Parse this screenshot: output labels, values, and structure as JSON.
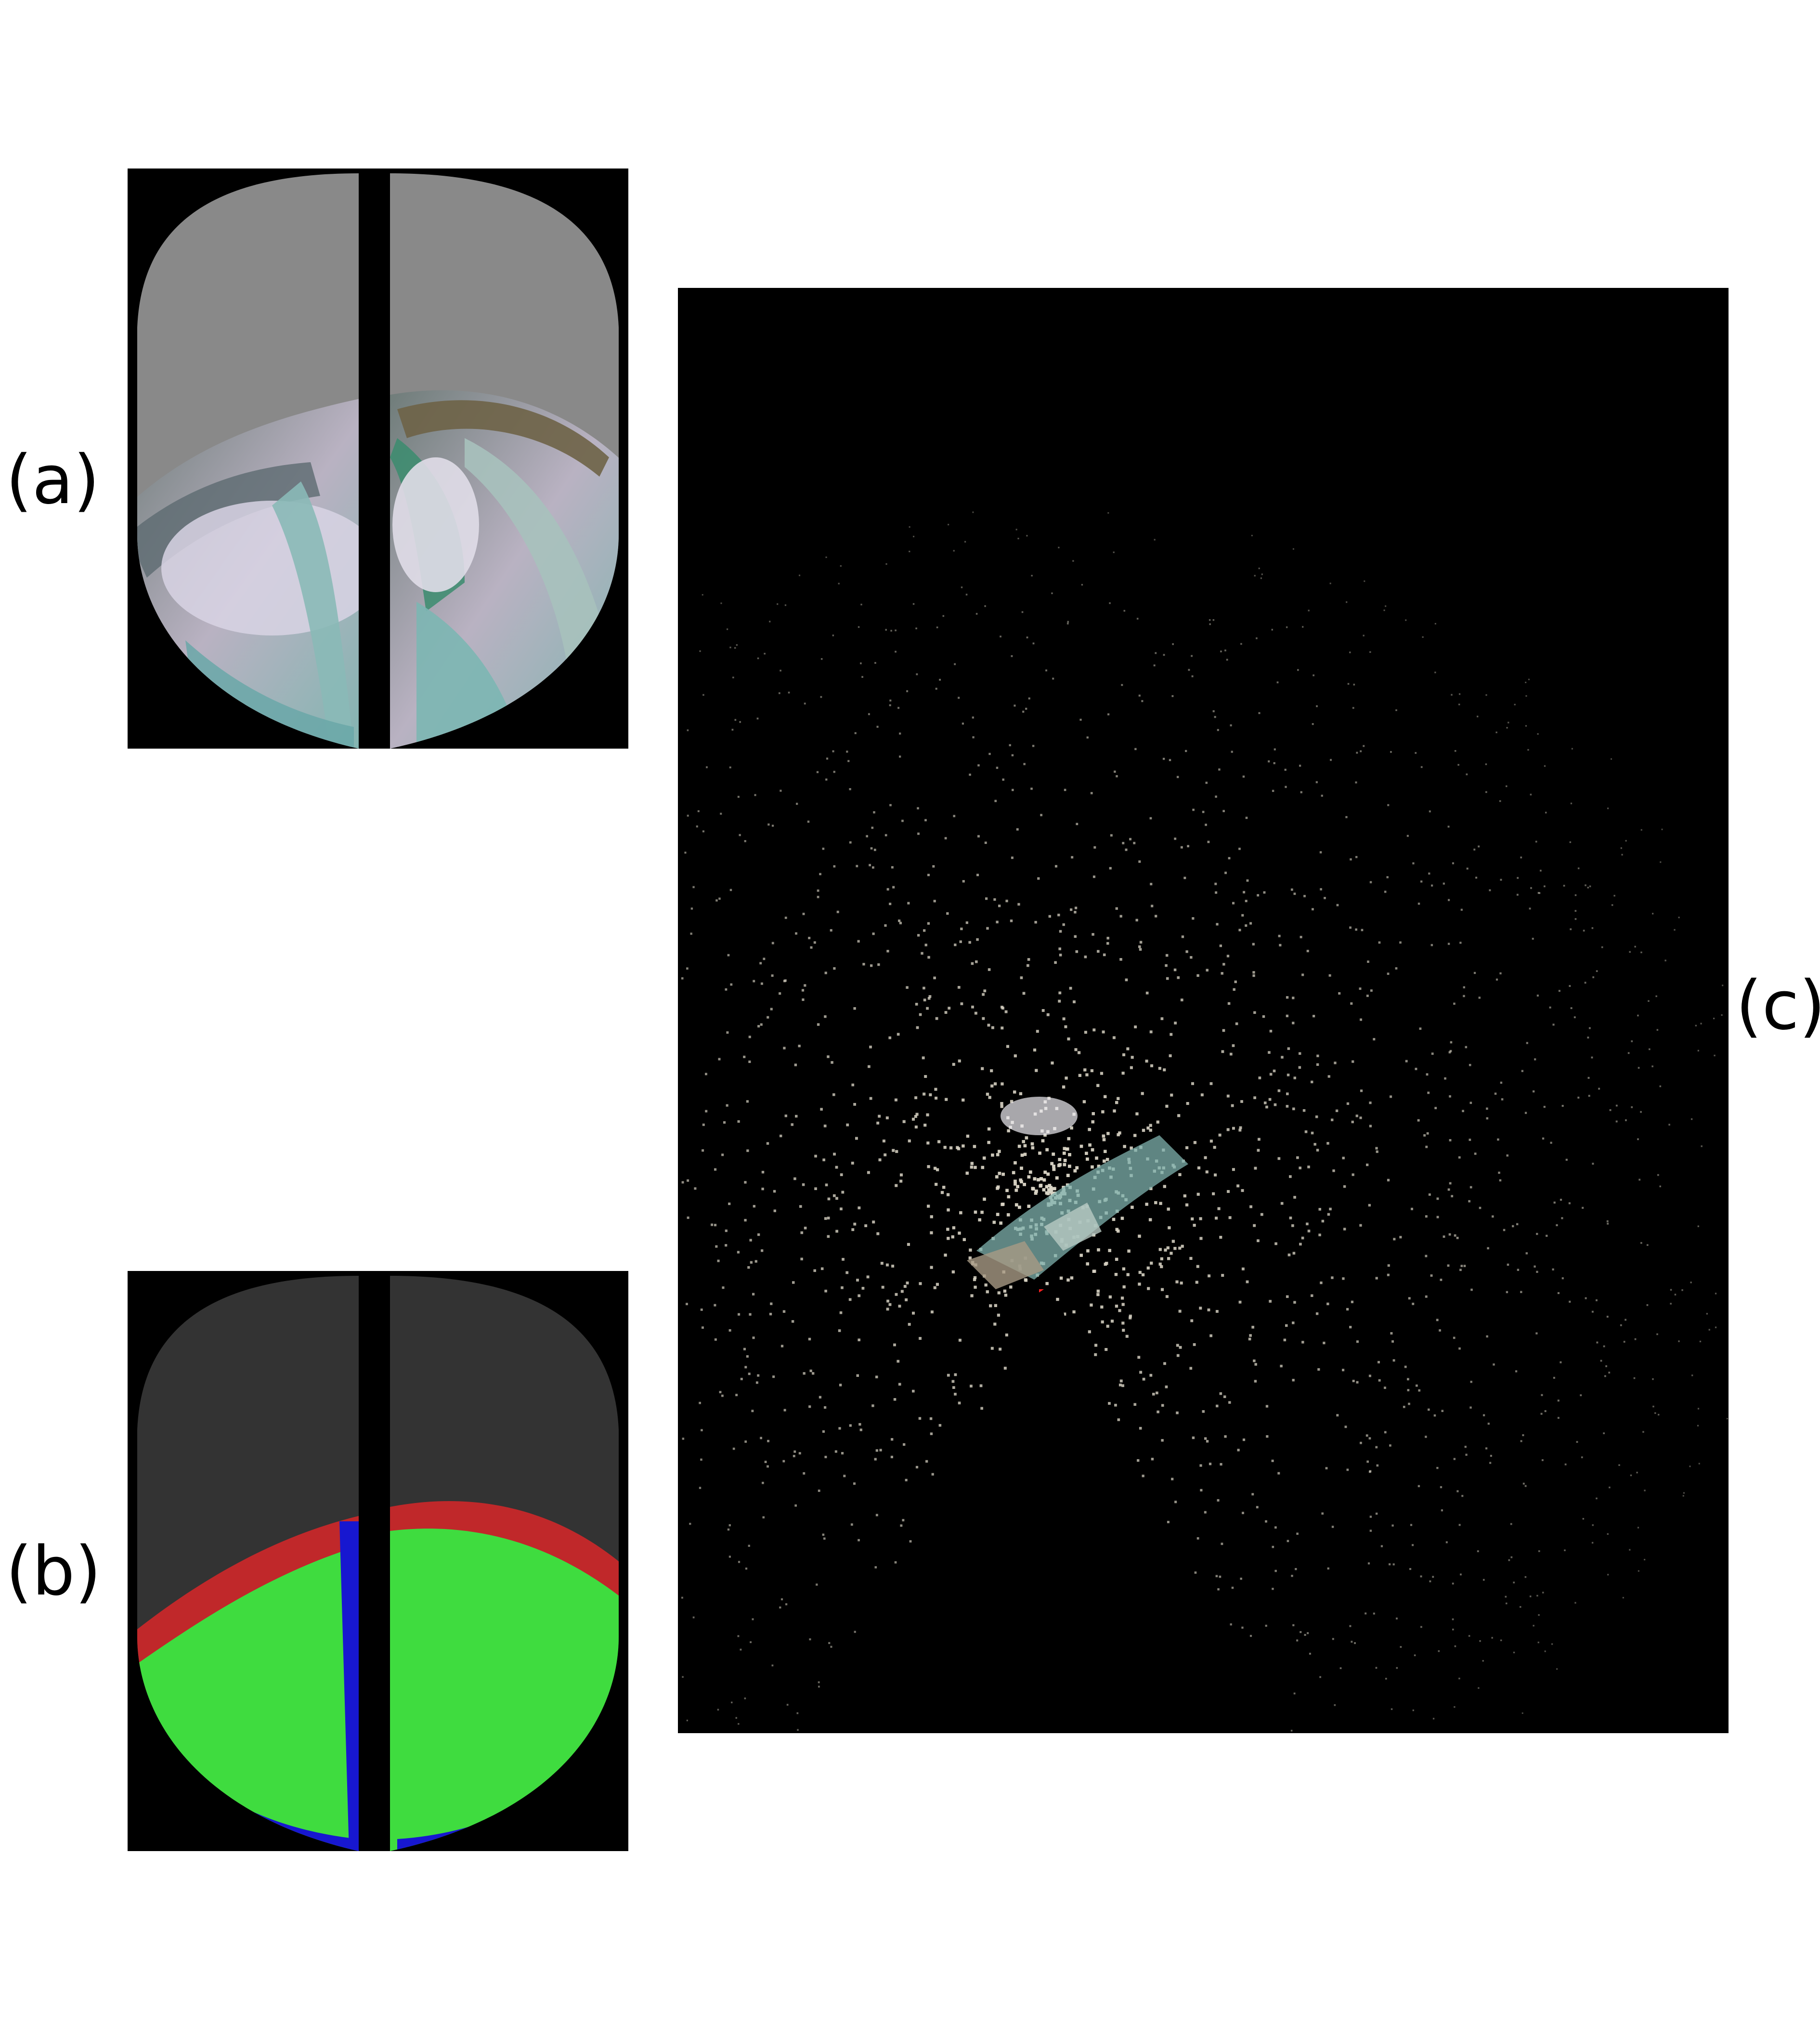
{
  "labels": {
    "a": "(a)",
    "b": "(b)",
    "c": "(c)"
  },
  "colors": {
    "background": "#ffffff",
    "panel_background": "#000000",
    "fisheye_gray": "#898989",
    "segmentation_gray": "#333333",
    "segmentation_green": "#3fdc3f",
    "segmentation_red": "#c0282a",
    "segmentation_blue": "#1717d0",
    "point_color": "#d8d3c4"
  },
  "panels": [
    {
      "id": "a",
      "kind": "fisheye-image-pair"
    },
    {
      "id": "b",
      "kind": "segmentation-mask-pair"
    },
    {
      "id": "c",
      "kind": "point-cloud-render"
    }
  ]
}
